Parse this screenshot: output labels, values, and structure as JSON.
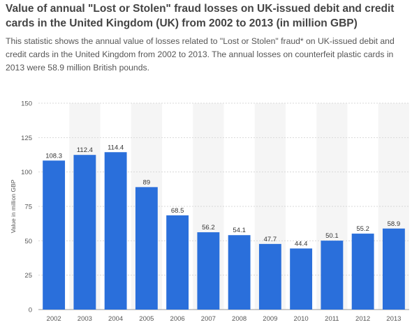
{
  "title": "Value of annual \"Lost or Stolen\" fraud losses on UK-issued debit and credit cards in the United Kingdom (UK) from 2002 to 2013 (in million GBP)",
  "description": "This statistic shows the annual value of losses related to \"Lost or Stolen\" fraud* on UK-issued debit and credit cards in the United Kingdom from 2002 to 2013. The annual losses on counterfeit plastic cards in 2013 were 58.9 million British pounds.",
  "colors": {
    "bar": "#2a6fdb",
    "stripe": "#f5f5f5",
    "grid": "#d8d8d8",
    "axis": "#999999"
  },
  "chart_data": {
    "type": "bar",
    "categories": [
      "2002",
      "2003",
      "2004",
      "2005",
      "2006",
      "2007",
      "2008",
      "2009",
      "2010",
      "2011",
      "2012",
      "2013"
    ],
    "values": [
      108.3,
      112.4,
      114.4,
      89,
      68.5,
      56.2,
      54.1,
      47.7,
      44.4,
      50.1,
      55.2,
      58.9
    ],
    "ylabel": "Value in million GBP",
    "ylim": [
      0,
      150
    ],
    "yticks": [
      0,
      25,
      50,
      75,
      100,
      125,
      150
    ],
    "grid": true
  }
}
